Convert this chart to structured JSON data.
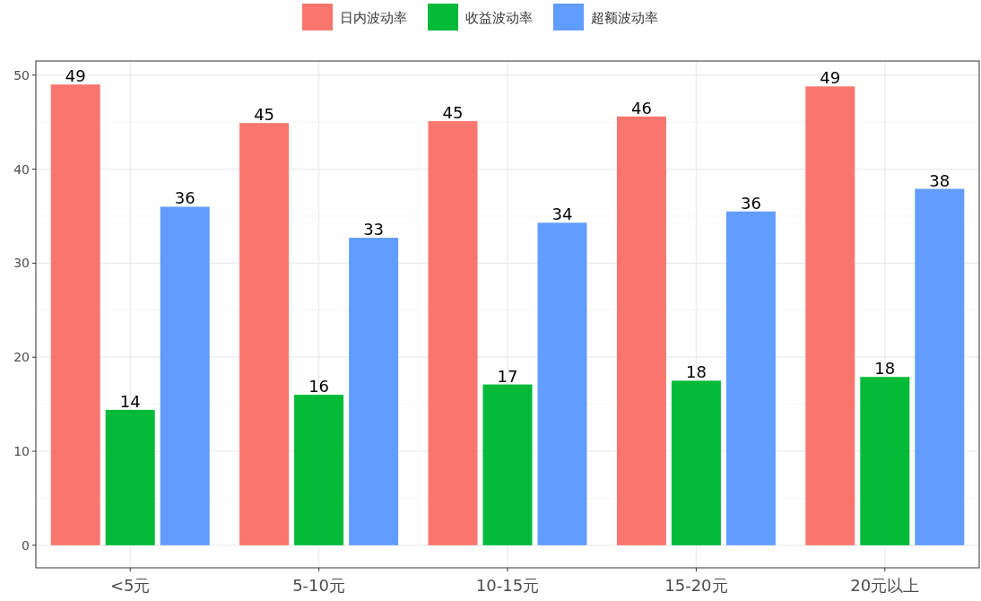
{
  "chart_data": {
    "type": "bar",
    "categories": [
      "<5元",
      "5-10元",
      "10-15元",
      "15-20元",
      "20元以上"
    ],
    "series": [
      {
        "name": "日内波动率",
        "color": "#f8766d",
        "values": [
          49.0,
          44.9,
          45.1,
          45.6,
          48.8
        ],
        "value_labels": [
          "49",
          "45",
          "45",
          "46",
          "49"
        ]
      },
      {
        "name": "收益波动率",
        "color": "#00ba38",
        "values": [
          14.4,
          16.0,
          17.1,
          17.5,
          17.9
        ],
        "value_labels": [
          "14",
          "16",
          "17",
          "18",
          "18"
        ]
      },
      {
        "name": "超额波动率",
        "color": "#619cff",
        "values": [
          36.0,
          32.7,
          34.3,
          35.5,
          37.9
        ],
        "value_labels": [
          "36",
          "33",
          "34",
          "36",
          "38"
        ]
      }
    ],
    "ylim": [
      -2.4,
      51.5
    ],
    "yticks": [
      0,
      10,
      20,
      30,
      40,
      50
    ],
    "grid": true,
    "legend": "top"
  }
}
